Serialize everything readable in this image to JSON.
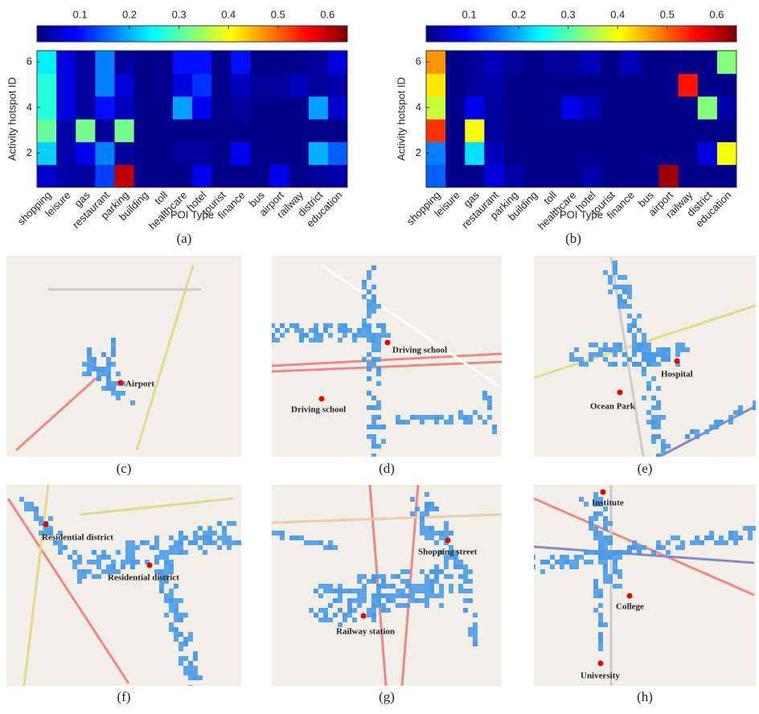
{
  "chart_data": [
    {
      "type": "heatmap",
      "caption": "(a)",
      "xlabel": "POI Type",
      "ylabel": "Activity hotspot ID",
      "categories": [
        "shopping",
        "leisure",
        "gas",
        "restaurant",
        "parking",
        "building",
        "toll",
        "healthcare",
        "hotel",
        "tourist",
        "finance",
        "bus",
        "airport",
        "railway",
        "district",
        "education"
      ],
      "y": [
        1,
        2,
        3,
        4,
        5,
        6
      ],
      "ylim": [
        0.5,
        6.5
      ],
      "yticks": [
        2,
        4,
        6
      ],
      "colormap": "jet",
      "clim": [
        0.013,
        0.64
      ],
      "cticks": [
        0.1,
        0.2,
        0.3,
        0.4,
        0.5,
        0.6
      ],
      "z": [
        [
          0.06,
          0.04,
          0.03,
          0.13,
          0.6,
          0.02,
          0.02,
          0.02,
          0.08,
          0.02,
          0.02,
          0.02,
          0.08,
          0.02,
          0.03,
          0.04
        ],
        [
          0.22,
          0.04,
          0.08,
          0.17,
          0.03,
          0.02,
          0.02,
          0.03,
          0.03,
          0.02,
          0.08,
          0.02,
          0.02,
          0.02,
          0.2,
          0.15
        ],
        [
          0.31,
          0.04,
          0.32,
          0.03,
          0.32,
          0.02,
          0.02,
          0.02,
          0.02,
          0.02,
          0.02,
          0.02,
          0.02,
          0.02,
          0.02,
          0.02
        ],
        [
          0.27,
          0.07,
          0.03,
          0.1,
          0.05,
          0.02,
          0.02,
          0.19,
          0.08,
          0.02,
          0.03,
          0.02,
          0.02,
          0.02,
          0.19,
          0.06
        ],
        [
          0.27,
          0.07,
          0.03,
          0.17,
          0.07,
          0.02,
          0.02,
          0.07,
          0.12,
          0.02,
          0.05,
          0.03,
          0.03,
          0.05,
          0.03,
          0.04
        ],
        [
          0.24,
          0.07,
          0.03,
          0.17,
          0.03,
          0.02,
          0.02,
          0.1,
          0.1,
          0.02,
          0.1,
          0.02,
          0.02,
          0.02,
          0.03,
          0.07
        ]
      ]
    },
    {
      "type": "heatmap",
      "caption": "(b)",
      "xlabel": "POI Type",
      "ylabel": "Activity hotspot ID",
      "categories": [
        "shopping",
        "leisure",
        "gas",
        "restaurant",
        "parking",
        "building",
        "toll",
        "healthcare",
        "hotel",
        "tourist",
        "finance",
        "bus",
        "airport",
        "railway",
        "district",
        "education"
      ],
      "y": [
        1,
        2,
        3,
        4,
        5,
        6
      ],
      "ylim": [
        0.5,
        6.5
      ],
      "yticks": [
        2,
        4,
        6
      ],
      "colormap": "jet",
      "clim": [
        0.013,
        0.64
      ],
      "cticks": [
        0.1,
        0.2,
        0.3,
        0.4,
        0.5,
        0.6
      ],
      "z": [
        [
          0.15,
          0.02,
          0.02,
          0.07,
          0.04,
          0.02,
          0.02,
          0.02,
          0.04,
          0.02,
          0.02,
          0.02,
          0.62,
          0.02,
          0.02,
          0.02
        ],
        [
          0.17,
          0.02,
          0.23,
          0.05,
          0.02,
          0.02,
          0.02,
          0.02,
          0.02,
          0.02,
          0.02,
          0.02,
          0.02,
          0.02,
          0.07,
          0.4
        ],
        [
          0.53,
          0.02,
          0.4,
          0.03,
          0.02,
          0.02,
          0.02,
          0.02,
          0.02,
          0.02,
          0.02,
          0.02,
          0.02,
          0.02,
          0.02,
          0.02
        ],
        [
          0.37,
          0.02,
          0.08,
          0.03,
          0.02,
          0.02,
          0.02,
          0.08,
          0.05,
          0.02,
          0.02,
          0.02,
          0.02,
          0.02,
          0.33,
          0.04
        ],
        [
          0.42,
          0.02,
          0.03,
          0.04,
          0.02,
          0.02,
          0.02,
          0.02,
          0.02,
          0.02,
          0.02,
          0.02,
          0.02,
          0.55,
          0.02,
          0.02
        ],
        [
          0.47,
          0.02,
          0.03,
          0.05,
          0.03,
          0.02,
          0.03,
          0.03,
          0.05,
          0.02,
          0.05,
          0.02,
          0.02,
          0.02,
          0.02,
          0.33
        ]
      ]
    }
  ],
  "maps": [
    {
      "caption": "(c)",
      "labels": [
        "Airport"
      ]
    },
    {
      "caption": "(d)",
      "labels": [
        "Driving school",
        "Driving school"
      ]
    },
    {
      "caption": "(e)",
      "labels": [
        "Hospital",
        "Ocean Park"
      ]
    },
    {
      "caption": "(f)",
      "labels": [
        "Residential district",
        "Residential district"
      ]
    },
    {
      "caption": "(g)",
      "labels": [
        "Shopping street",
        "Railway station"
      ]
    },
    {
      "caption": "(h)",
      "labels": [
        "Institute",
        "College",
        "University"
      ]
    }
  ]
}
